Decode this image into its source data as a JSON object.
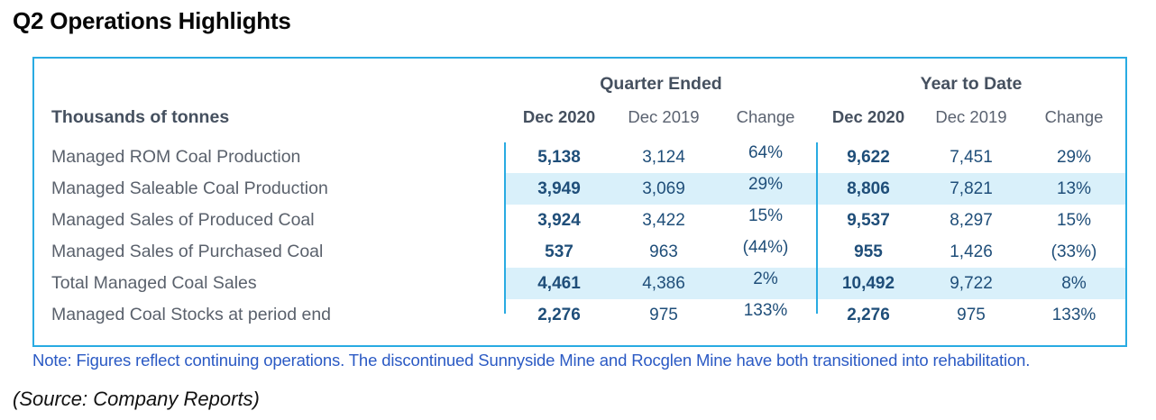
{
  "page": {
    "title": "Q2 Operations Highlights",
    "footnote": "Note: Figures reflect continuing operations. The discontinued Sunnyside Mine and Rocglen Mine have both transitioned into rehabilitation.",
    "source_note": "(Source: Company Reports)"
  },
  "table": {
    "row_header_label": "Thousands of tonnes",
    "group_headers": {
      "quarter": "Quarter Ended",
      "ytd": "Year to Date"
    },
    "columns": [
      "Dec 2020",
      "Dec 2019",
      "Change",
      "Dec 2020",
      "Dec 2019",
      "Change"
    ],
    "rows": [
      {
        "label": "Managed ROM Coal Production",
        "values": [
          "5,138",
          "3,124",
          "64%",
          "9,622",
          "7,451",
          "29%"
        ]
      },
      {
        "label": "Managed Saleable Coal Production",
        "values": [
          "3,949",
          "3,069",
          "29%",
          "8,806",
          "7,821",
          "13%"
        ]
      },
      {
        "label": "Managed Sales of Produced Coal",
        "values": [
          "3,924",
          "3,422",
          "15%",
          "9,537",
          "8,297",
          "15%"
        ]
      },
      {
        "label": "Managed Sales of Purchased Coal",
        "values": [
          "537",
          "963",
          "(44%)",
          "955",
          "1,426",
          "(33%)"
        ]
      },
      {
        "label": "Total Managed Coal Sales",
        "values": [
          "4,461",
          "4,386",
          "2%",
          "10,492",
          "9,722",
          "8%"
        ]
      },
      {
        "label": "Managed Coal Stocks at period end",
        "values": [
          "2,276",
          "975",
          "133%",
          "2,276",
          "975",
          "133%"
        ]
      }
    ],
    "colors": {
      "border": "#29ABE2",
      "stripe": "#D9F0FA",
      "value_text": "#1F4E79",
      "header_text": "#45505F",
      "label_text": "#5A616C",
      "footnote_text": "#2B5AC4"
    }
  }
}
